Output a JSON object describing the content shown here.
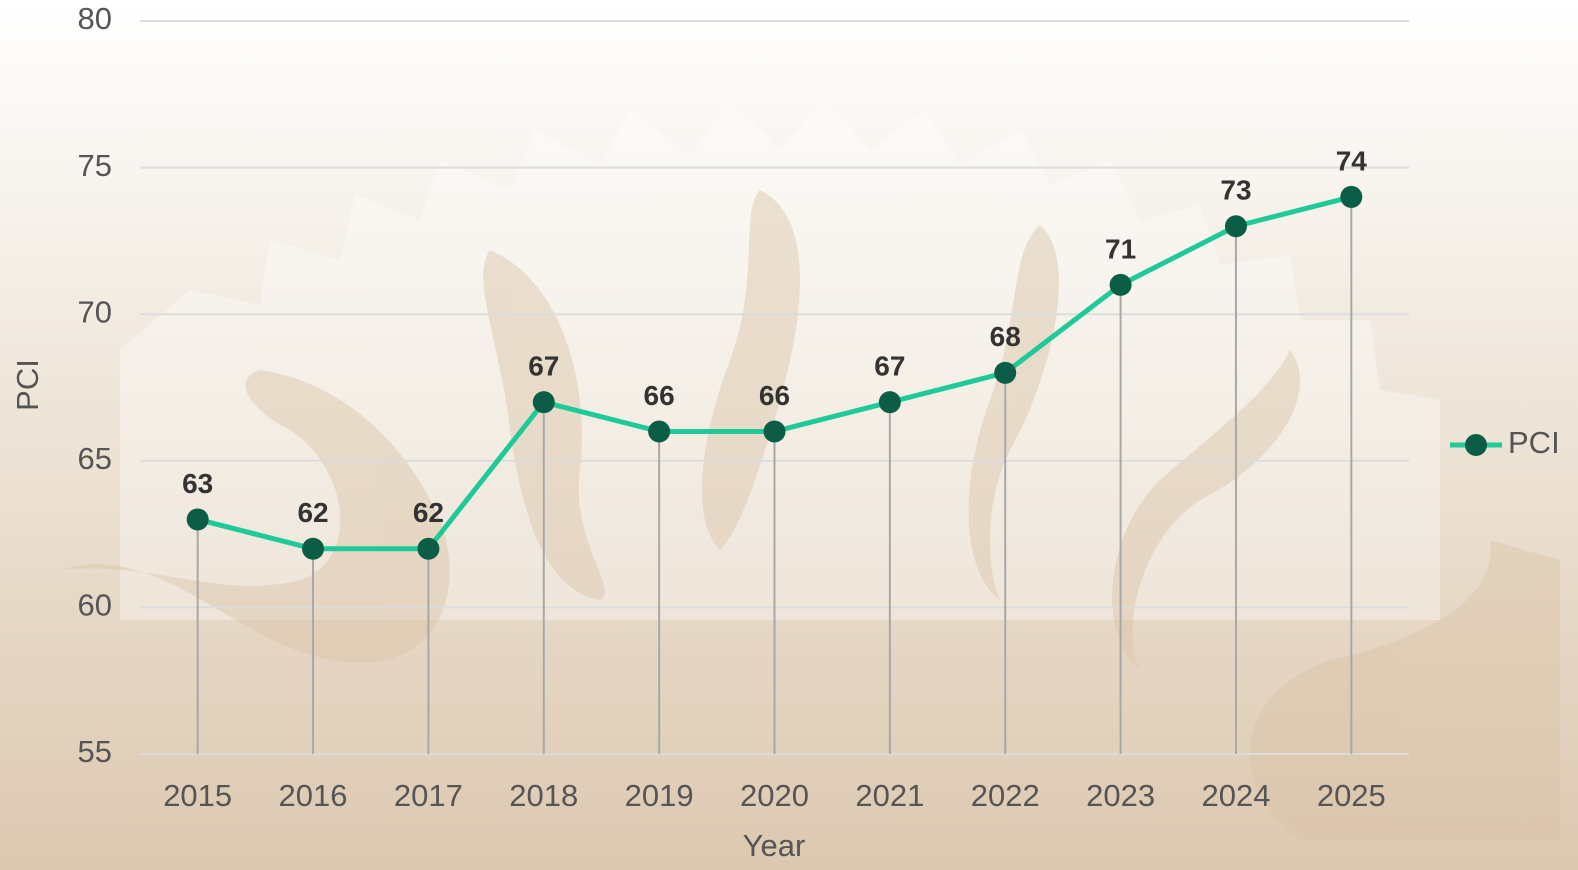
{
  "chart_data": {
    "type": "line",
    "x_label": "Year",
    "y_label": "PCI",
    "categories": [
      "2015",
      "2016",
      "2017",
      "2018",
      "2019",
      "2020",
      "2021",
      "2022",
      "2023",
      "2024",
      "2025"
    ],
    "series": [
      {
        "name": "PCI",
        "color": "#1fc998",
        "marker_color": "#0b5e45",
        "values": [
          63,
          62,
          62,
          67,
          66,
          66,
          67,
          68,
          71,
          73,
          74
        ]
      }
    ],
    "ylim": [
      55,
      80
    ],
    "yticks": [
      55,
      60,
      65,
      70,
      75,
      80
    ],
    "grid": true,
    "drop_lines": true,
    "data_labels": true,
    "legend": "right"
  }
}
